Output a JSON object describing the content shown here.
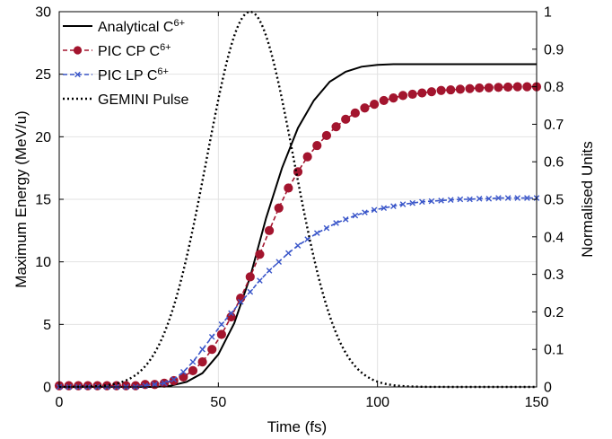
{
  "chart_data": {
    "type": "line",
    "title": "",
    "xlabel": "Time (fs)",
    "ylabel_left": "Maximum Energy (MeV/u)",
    "ylabel_right": "Normalised Units",
    "xlim": [
      0,
      150
    ],
    "ylim_left": [
      0,
      30
    ],
    "ylim_right": [
      0,
      1
    ],
    "xticks": [
      0,
      50,
      100,
      150
    ],
    "yticks_left": [
      0,
      5,
      10,
      15,
      20,
      25,
      30
    ],
    "yticks_right": [
      0,
      0.1,
      0.2,
      0.3,
      0.4,
      0.5,
      0.6,
      0.7,
      0.8,
      0.9,
      1
    ],
    "grid": true,
    "legend_position": "top-left",
    "series": [
      {
        "name": "Analytical C",
        "name_sup": "6+",
        "axis": "left",
        "style": "solid",
        "color": "#000000",
        "x": [
          0,
          10,
          20,
          30,
          35,
          40,
          45,
          50,
          55,
          60,
          65,
          70,
          75,
          80,
          85,
          90,
          95,
          100,
          105,
          110,
          115,
          120,
          130,
          140,
          150
        ],
        "y": [
          0,
          0,
          0,
          0,
          0.1,
          0.4,
          1.1,
          2.6,
          5.1,
          8.8,
          13.5,
          17.5,
          20.7,
          22.9,
          24.4,
          25.2,
          25.6,
          25.75,
          25.8,
          25.8,
          25.8,
          25.8,
          25.8,
          25.8,
          25.8
        ]
      },
      {
        "name": "PIC CP C",
        "name_sup": "6+",
        "axis": "left",
        "style": "dashed-circle",
        "color": "#a3152e",
        "x": [
          0,
          3,
          6,
          9,
          12,
          15,
          18,
          21,
          24,
          27,
          30,
          33,
          36,
          39,
          42,
          45,
          48,
          51,
          54,
          57,
          60,
          63,
          66,
          69,
          72,
          75,
          78,
          81,
          84,
          87,
          90,
          93,
          96,
          99,
          102,
          105,
          108,
          111,
          114,
          117,
          120,
          123,
          126,
          129,
          132,
          135,
          138,
          141,
          144,
          147,
          150
        ],
        "y": [
          0.1,
          0.1,
          0.1,
          0.1,
          0.1,
          0.1,
          0.1,
          0.1,
          0.1,
          0.2,
          0.2,
          0.3,
          0.5,
          0.8,
          1.3,
          2.0,
          3.0,
          4.2,
          5.6,
          7.1,
          8.8,
          10.6,
          12.5,
          14.3,
          15.9,
          17.2,
          18.4,
          19.3,
          20.1,
          20.8,
          21.4,
          21.9,
          22.3,
          22.6,
          22.9,
          23.1,
          23.3,
          23.4,
          23.5,
          23.6,
          23.7,
          23.75,
          23.8,
          23.85,
          23.9,
          23.92,
          23.95,
          23.97,
          24.0,
          24.0,
          24.0
        ]
      },
      {
        "name": "PIC LP C",
        "name_sup": "6+",
        "axis": "left",
        "style": "dashed-x",
        "color": "#3a56c9",
        "x": [
          0,
          3,
          6,
          9,
          12,
          15,
          18,
          21,
          24,
          27,
          30,
          33,
          36,
          39,
          42,
          45,
          48,
          51,
          54,
          57,
          60,
          63,
          66,
          69,
          72,
          75,
          78,
          81,
          84,
          87,
          90,
          93,
          96,
          99,
          102,
          105,
          108,
          111,
          114,
          117,
          120,
          123,
          126,
          129,
          132,
          135,
          138,
          141,
          144,
          147,
          150
        ],
        "y": [
          0,
          0,
          0,
          0,
          0,
          0,
          0,
          0,
          0,
          0.1,
          0.2,
          0.3,
          0.6,
          1.2,
          2.0,
          3.0,
          4.0,
          5.0,
          5.9,
          6.8,
          7.6,
          8.5,
          9.3,
          10.0,
          10.7,
          11.3,
          11.8,
          12.3,
          12.7,
          13.1,
          13.4,
          13.7,
          13.95,
          14.15,
          14.3,
          14.45,
          14.6,
          14.7,
          14.8,
          14.85,
          14.9,
          14.95,
          15.0,
          15.0,
          15.05,
          15.05,
          15.1,
          15.1,
          15.1,
          15.1,
          15.1
        ]
      },
      {
        "name": "GEMINI Pulse",
        "axis": "right",
        "style": "dotted",
        "color": "#000000",
        "type": "gaussian",
        "amplitude": 1,
        "center": 60,
        "sigma": 13.7
      }
    ]
  }
}
